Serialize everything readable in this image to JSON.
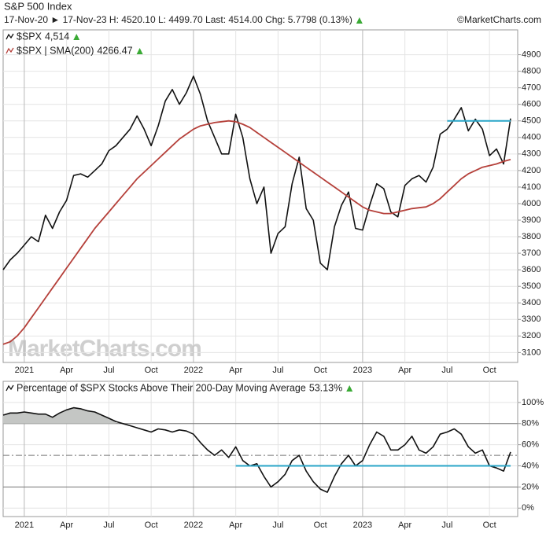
{
  "header": {
    "title": "S&P 500 Index",
    "info": "17-Nov-20 ► 17-Nov-23 H: 4520.10 L: 4499.70 Last: 4514.00 Chg: 5.7798 (0.13%)",
    "source": "©MarketCharts.com",
    "watermark": "MarketCharts.com"
  },
  "chart_data": [
    {
      "type": "line",
      "xlim": [
        0,
        73
      ],
      "xticks": [
        {
          "value": 3,
          "label": "2021"
        },
        {
          "value": 9,
          "label": "Apr"
        },
        {
          "value": 15,
          "label": "Jul"
        },
        {
          "value": 21,
          "label": "Oct"
        },
        {
          "value": 27,
          "label": "2022"
        },
        {
          "value": 33,
          "label": "Apr"
        },
        {
          "value": 39,
          "label": "Jul"
        },
        {
          "value": 45,
          "label": "Oct"
        },
        {
          "value": 51,
          "label": "2023"
        },
        {
          "value": 57,
          "label": "Apr"
        },
        {
          "value": 63,
          "label": "Jul"
        },
        {
          "value": 69,
          "label": "Oct"
        }
      ],
      "ylim": [
        3040,
        5050
      ],
      "yticks": [
        3100,
        3200,
        3300,
        3400,
        3500,
        3600,
        3700,
        3800,
        3900,
        4000,
        4100,
        4200,
        4300,
        4400,
        4500,
        4600,
        4700,
        4800,
        4900
      ],
      "grid": true,
      "series": [
        {
          "name": "$SPX",
          "last_label": "4,514",
          "color": "#111111",
          "values": [
            3600,
            3660,
            3700,
            3750,
            3800,
            3770,
            3930,
            3850,
            3950,
            4020,
            4170,
            4180,
            4160,
            4200,
            4240,
            4320,
            4350,
            4400,
            4450,
            4530,
            4450,
            4350,
            4470,
            4620,
            4690,
            4600,
            4670,
            4770,
            4660,
            4500,
            4400,
            4300,
            4300,
            4540,
            4400,
            4150,
            4000,
            4100,
            3700,
            3820,
            3860,
            4120,
            4280,
            3970,
            3900,
            3640,
            3600,
            3860,
            3990,
            4070,
            3850,
            3840,
            3990,
            4120,
            4090,
            3950,
            3920,
            4110,
            4150,
            4170,
            4130,
            4220,
            4420,
            4450,
            4510,
            4580,
            4440,
            4510,
            4450,
            4290,
            4330,
            4240,
            4514
          ]
        },
        {
          "name": "$SPX | SMA(200)",
          "last_label": "4266.47",
          "color": "#b5403a",
          "values": [
            3150,
            3165,
            3200,
            3250,
            3310,
            3370,
            3430,
            3490,
            3550,
            3610,
            3670,
            3730,
            3790,
            3850,
            3900,
            3950,
            4000,
            4050,
            4100,
            4150,
            4190,
            4230,
            4270,
            4310,
            4350,
            4390,
            4420,
            4450,
            4470,
            4480,
            4490,
            4495,
            4500,
            4495,
            4480,
            4460,
            4430,
            4400,
            4370,
            4340,
            4310,
            4280,
            4250,
            4220,
            4190,
            4160,
            4130,
            4100,
            4070,
            4040,
            4010,
            3980,
            3960,
            3950,
            3940,
            3940,
            3950,
            3960,
            3970,
            3975,
            3980,
            4000,
            4030,
            4070,
            4110,
            4150,
            4180,
            4200,
            4220,
            4230,
            4240,
            4255,
            4266.47
          ]
        }
      ],
      "reference_lines": [
        {
          "value": 4500,
          "from": 63,
          "to": 72,
          "color": "#2aa6c8"
        }
      ]
    },
    {
      "type": "line",
      "xlim": [
        0,
        73
      ],
      "xticks": [
        {
          "value": 3,
          "label": "2021"
        },
        {
          "value": 9,
          "label": "Apr"
        },
        {
          "value": 15,
          "label": "Jul"
        },
        {
          "value": 21,
          "label": "Oct"
        },
        {
          "value": 27,
          "label": "2022"
        },
        {
          "value": 33,
          "label": "Apr"
        },
        {
          "value": 39,
          "label": "Jul"
        },
        {
          "value": 45,
          "label": "Oct"
        },
        {
          "value": 51,
          "label": "2023"
        },
        {
          "value": 57,
          "label": "Apr"
        },
        {
          "value": 63,
          "label": "Jul"
        },
        {
          "value": 69,
          "label": "Oct"
        }
      ],
      "ylim": [
        -8,
        120
      ],
      "yticks": [
        {
          "value": 0,
          "label": "0%"
        },
        {
          "value": 20,
          "label": "20%"
        },
        {
          "value": 40,
          "label": "40%"
        },
        {
          "value": 60,
          "label": "60%"
        },
        {
          "value": 80,
          "label": "80%"
        },
        {
          "value": 100,
          "label": "100%"
        }
      ],
      "grid": true,
      "series": [
        {
          "name": "Percentage of $SPX Stocks Above Their 200-Day Moving Average",
          "last_label": "53.13%",
          "color": "#111111",
          "values": [
            88,
            90,
            90,
            91,
            90,
            89,
            89,
            86,
            90,
            93,
            95,
            94,
            92,
            91,
            88,
            85,
            82,
            80,
            78,
            76,
            74,
            72,
            75,
            74,
            72,
            74,
            73,
            70,
            62,
            55,
            50,
            55,
            48,
            58,
            45,
            40,
            42,
            30,
            20,
            25,
            32,
            45,
            50,
            35,
            25,
            18,
            15,
            30,
            42,
            50,
            40,
            45,
            60,
            72,
            68,
            55,
            55,
            60,
            68,
            55,
            52,
            58,
            70,
            72,
            75,
            70,
            58,
            52,
            55,
            40,
            38,
            35,
            53.13
          ]
        }
      ],
      "fill_above": {
        "value": 80,
        "color": "#c4c6c4"
      },
      "threshold_lines": [
        {
          "value": 80,
          "style": "solid"
        },
        {
          "value": 50,
          "style": "dashdot"
        },
        {
          "value": 20,
          "style": "solid"
        }
      ],
      "reference_lines": [
        {
          "value": 40,
          "from": 33,
          "to": 72,
          "color": "#2aa6c8"
        }
      ]
    }
  ]
}
